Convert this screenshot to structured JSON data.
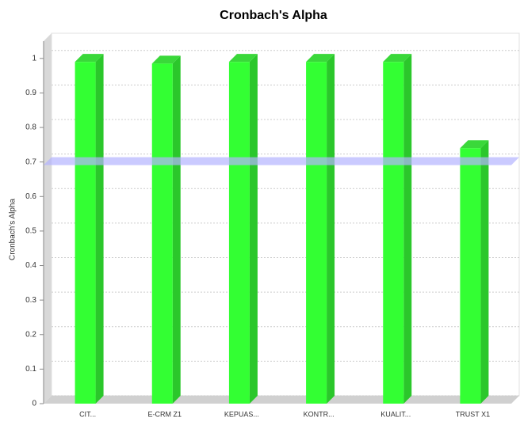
{
  "chart_data": {
    "type": "bar3d",
    "title": "Cronbach's Alpha",
    "y_label": "Cronbach's Alpha",
    "categories": [
      "CIT...",
      "E-CRM Z1",
      "KEPUAS...",
      "KONTR...",
      "KUALIT...",
      "TRUST X1"
    ],
    "values": [
      0.99,
      0.985,
      0.99,
      0.99,
      0.99,
      0.74
    ],
    "color": "#33ff33",
    "reference_line": 0.7,
    "reference_color": "#b4b4ff",
    "ylim": [
      0,
      1.05
    ],
    "yticks": [
      0,
      0.1,
      0.2,
      0.3,
      0.4,
      0.5,
      0.6,
      0.7,
      0.8,
      0.9,
      1
    ],
    "grid": true
  }
}
